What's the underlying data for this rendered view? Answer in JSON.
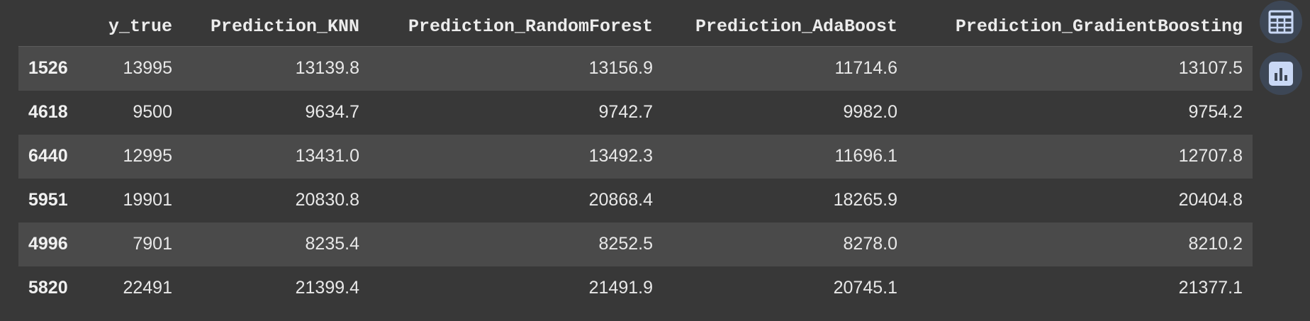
{
  "table": {
    "columns": [
      "",
      "y_true",
      "Prediction_KNN",
      "Prediction_RandomForest",
      "Prediction_AdaBoost",
      "Prediction_GradientBoosting"
    ],
    "rows": [
      {
        "index": "1526",
        "cells": [
          "13995",
          "13139.8",
          "13156.9",
          "11714.6",
          "13107.5"
        ]
      },
      {
        "index": "4618",
        "cells": [
          "9500",
          "9634.7",
          "9742.7",
          "9982.0",
          "9754.2"
        ]
      },
      {
        "index": "6440",
        "cells": [
          "12995",
          "13431.0",
          "13492.3",
          "11696.1",
          "12707.8"
        ]
      },
      {
        "index": "5951",
        "cells": [
          "19901",
          "20830.8",
          "20868.4",
          "18265.9",
          "20404.8"
        ]
      },
      {
        "index": "4996",
        "cells": [
          "7901",
          "8235.4",
          "8252.5",
          "8278.0",
          "8210.2"
        ]
      },
      {
        "index": "5820",
        "cells": [
          "22491",
          "21399.4",
          "21491.9",
          "20745.1",
          "21377.1"
        ]
      }
    ]
  },
  "side_buttons": [
    {
      "icon": "table-icon"
    },
    {
      "icon": "bar-chart-icon"
    }
  ],
  "colors": {
    "background": "#383838",
    "row_stripe": "#4a4a4a",
    "button_bg": "#3d4756",
    "icon": "#c9d8f5"
  }
}
